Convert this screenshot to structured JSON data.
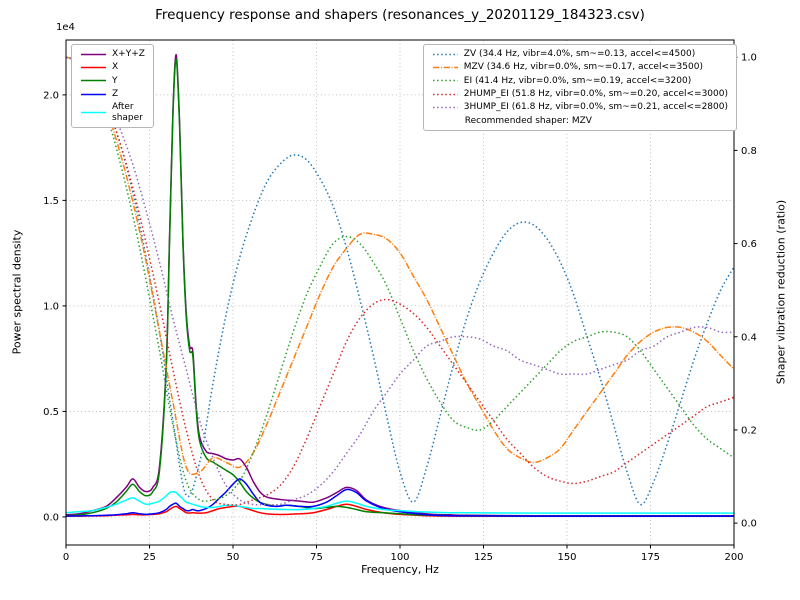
{
  "chart_data": {
    "type": "line",
    "title": "Frequency response and shapers (resonances_y_20201129_184323.csv)",
    "xlabel": "Frequency, Hz",
    "ylabel_left": "Power spectral density",
    "ylabel_right": "Shaper vibration reduction (ratio)",
    "offset_text": "1e4",
    "grid": true,
    "xlim": [
      0,
      200
    ],
    "ylim_left": [
      -0.133,
      2.26
    ],
    "ylim_right": [
      -0.047,
      1.037
    ],
    "xticks": {
      "values": [
        0,
        25,
        50,
        75,
        100,
        125,
        150,
        175,
        200
      ],
      "labels": [
        "0",
        "25",
        "50",
        "75",
        "100",
        "125",
        "150",
        "175",
        "200"
      ]
    },
    "yticks_left": {
      "values": [
        0.0,
        0.5,
        1.0,
        1.5,
        2.0
      ],
      "labels": [
        "0.0",
        "0.5",
        "1.0",
        "1.5",
        "2.0"
      ]
    },
    "yticks_right": {
      "values": [
        0.0,
        0.2,
        0.4,
        0.6,
        0.8,
        1.0
      ],
      "labels": [
        "0.0",
        "0.2",
        "0.4",
        "0.6",
        "0.8",
        "1.0"
      ]
    },
    "recommended": "Recommended shaper: MZV",
    "psd_x": [
      0,
      4,
      8,
      12,
      15,
      18,
      20,
      22,
      24,
      26,
      28,
      30,
      31,
      32,
      33,
      34,
      35,
      36,
      37,
      38,
      39,
      40,
      42,
      44,
      46,
      48,
      50,
      52,
      54,
      56,
      58,
      60,
      63,
      66,
      70,
      74,
      78,
      81,
      84,
      87,
      90,
      95,
      100,
      105,
      110,
      115,
      120,
      140,
      160,
      180,
      200
    ],
    "psd_series": [
      {
        "name": "X+Y+Z",
        "color": "#800080",
        "style": "solid",
        "y": [
          0.01,
          0.015,
          0.03,
          0.05,
          0.09,
          0.14,
          0.18,
          0.14,
          0.12,
          0.14,
          0.24,
          0.72,
          1.32,
          1.92,
          2.19,
          1.87,
          1.32,
          0.97,
          0.81,
          0.78,
          0.52,
          0.38,
          0.31,
          0.3,
          0.29,
          0.275,
          0.27,
          0.275,
          0.235,
          0.17,
          0.12,
          0.095,
          0.085,
          0.08,
          0.075,
          0.07,
          0.09,
          0.115,
          0.14,
          0.125,
          0.08,
          0.045,
          0.03,
          0.02,
          0.012,
          0.01,
          0.008,
          0.006,
          0.006,
          0.006,
          0.006
        ]
      },
      {
        "name": "X",
        "color": "#ff0000",
        "style": "solid",
        "y": [
          0.004,
          0.004,
          0.005,
          0.006,
          0.008,
          0.01,
          0.012,
          0.01,
          0.01,
          0.012,
          0.015,
          0.025,
          0.035,
          0.045,
          0.05,
          0.04,
          0.03,
          0.02,
          0.018,
          0.02,
          0.018,
          0.018,
          0.02,
          0.03,
          0.04,
          0.045,
          0.05,
          0.05,
          0.04,
          0.03,
          0.02,
          0.015,
          0.012,
          0.012,
          0.015,
          0.02,
          0.035,
          0.05,
          0.06,
          0.05,
          0.035,
          0.02,
          0.012,
          0.008,
          0.005,
          0.004,
          0.004,
          0.003,
          0.003,
          0.003,
          0.003
        ]
      },
      {
        "name": "Y",
        "color": "#008000",
        "style": "solid",
        "y": [
          0.005,
          0.01,
          0.02,
          0.04,
          0.07,
          0.12,
          0.155,
          0.12,
          0.1,
          0.12,
          0.22,
          0.7,
          1.3,
          1.9,
          2.17,
          1.85,
          1.3,
          0.95,
          0.79,
          0.76,
          0.5,
          0.36,
          0.28,
          0.26,
          0.24,
          0.22,
          0.2,
          0.165,
          0.12,
          0.09,
          0.07,
          0.06,
          0.05,
          0.055,
          0.05,
          0.04,
          0.045,
          0.05,
          0.045,
          0.035,
          0.025,
          0.02,
          0.015,
          0.01,
          0.008,
          0.006,
          0.005,
          0.004,
          0.004,
          0.004,
          0.004
        ]
      },
      {
        "name": "Z",
        "color": "#0000ff",
        "style": "solid",
        "y": [
          0.004,
          0.005,
          0.006,
          0.008,
          0.01,
          0.015,
          0.02,
          0.015,
          0.012,
          0.015,
          0.02,
          0.035,
          0.05,
          0.06,
          0.065,
          0.05,
          0.04,
          0.03,
          0.03,
          0.035,
          0.03,
          0.03,
          0.04,
          0.06,
          0.09,
          0.12,
          0.155,
          0.18,
          0.155,
          0.11,
          0.07,
          0.055,
          0.05,
          0.055,
          0.05,
          0.05,
          0.07,
          0.1,
          0.13,
          0.115,
          0.075,
          0.04,
          0.025,
          0.015,
          0.008,
          0.006,
          0.005,
          0.004,
          0.004,
          0.004,
          0.004
        ]
      },
      {
        "name": "After\nshaper",
        "color": "#00ffff",
        "style": "solid",
        "y": [
          0.02,
          0.025,
          0.03,
          0.045,
          0.06,
          0.08,
          0.09,
          0.075,
          0.06,
          0.065,
          0.075,
          0.1,
          0.115,
          0.12,
          0.115,
          0.1,
          0.085,
          0.07,
          0.065,
          0.06,
          0.055,
          0.05,
          0.045,
          0.045,
          0.05,
          0.055,
          0.055,
          0.05,
          0.045,
          0.04,
          0.04,
          0.038,
          0.036,
          0.035,
          0.035,
          0.04,
          0.05,
          0.065,
          0.075,
          0.065,
          0.05,
          0.035,
          0.03,
          0.025,
          0.022,
          0.02,
          0.02,
          0.018,
          0.018,
          0.018,
          0.018
        ]
      }
    ],
    "shaper_x": [
      0,
      4,
      8,
      12,
      16,
      20,
      24,
      28,
      32,
      36,
      40,
      44,
      48,
      52,
      56,
      60,
      64,
      68,
      72,
      76,
      80,
      84,
      88,
      92,
      96,
      100,
      104,
      108,
      112,
      116,
      120,
      124,
      128,
      132,
      136,
      140,
      144,
      148,
      152,
      156,
      160,
      164,
      168,
      172,
      176,
      180,
      184,
      188,
      192,
      196,
      200
    ],
    "shaper_series": [
      {
        "name": "ZV (34.4 Hz, vibr=4.0%, sm~=0.13, accel<=4500)",
        "color": "#1f77b4",
        "style": "dotted",
        "values": [
          1.0,
          0.99,
          0.96,
          0.9,
          0.82,
          0.71,
          0.57,
          0.41,
          0.22,
          0.06,
          0.13,
          0.3,
          0.45,
          0.57,
          0.66,
          0.73,
          0.77,
          0.79,
          0.78,
          0.74,
          0.68,
          0.59,
          0.48,
          0.36,
          0.23,
          0.11,
          0.045,
          0.12,
          0.23,
          0.34,
          0.44,
          0.52,
          0.58,
          0.625,
          0.645,
          0.64,
          0.61,
          0.56,
          0.49,
          0.4,
          0.31,
          0.21,
          0.11,
          0.04,
          0.09,
          0.17,
          0.26,
          0.35,
          0.43,
          0.5,
          0.55
        ]
      },
      {
        "name": "MZV (34.6 Hz, vibr=0.0%, sm~=0.17, accel<=3500)",
        "color": "#ff7f0e",
        "style": "dashdot",
        "values": [
          1.0,
          0.99,
          0.95,
          0.89,
          0.8,
          0.69,
          0.56,
          0.41,
          0.26,
          0.12,
          0.11,
          0.14,
          0.13,
          0.12,
          0.15,
          0.21,
          0.28,
          0.35,
          0.42,
          0.49,
          0.55,
          0.59,
          0.62,
          0.62,
          0.61,
          0.58,
          0.53,
          0.48,
          0.42,
          0.36,
          0.3,
          0.25,
          0.2,
          0.16,
          0.14,
          0.13,
          0.14,
          0.16,
          0.2,
          0.24,
          0.28,
          0.32,
          0.36,
          0.39,
          0.41,
          0.42,
          0.42,
          0.41,
          0.39,
          0.36,
          0.33
        ]
      },
      {
        "name": "EI (41.4 Hz, vibr=0.0%, sm~=0.19, accel<=3200)",
        "color": "#2ca02c",
        "style": "dotted",
        "values": [
          1.0,
          0.99,
          0.95,
          0.88,
          0.78,
          0.66,
          0.52,
          0.37,
          0.21,
          0.09,
          0.05,
          0.05,
          0.06,
          0.09,
          0.15,
          0.23,
          0.32,
          0.41,
          0.49,
          0.55,
          0.6,
          0.615,
          0.6,
          0.56,
          0.51,
          0.44,
          0.37,
          0.31,
          0.26,
          0.22,
          0.205,
          0.2,
          0.22,
          0.25,
          0.28,
          0.31,
          0.34,
          0.37,
          0.39,
          0.4,
          0.41,
          0.41,
          0.4,
          0.37,
          0.33,
          0.29,
          0.25,
          0.21,
          0.18,
          0.16,
          0.14
        ]
      },
      {
        "name": "2HUMP_EI (51.8 Hz, vibr=0.0%, sm~=0.20, accel<=3000)",
        "color": "#d62728",
        "style": "dotted",
        "values": [
          1.0,
          0.99,
          0.96,
          0.9,
          0.82,
          0.72,
          0.6,
          0.47,
          0.33,
          0.2,
          0.1,
          0.05,
          0.04,
          0.04,
          0.05,
          0.06,
          0.08,
          0.12,
          0.18,
          0.25,
          0.32,
          0.39,
          0.44,
          0.47,
          0.48,
          0.47,
          0.45,
          0.42,
          0.38,
          0.34,
          0.3,
          0.26,
          0.22,
          0.18,
          0.15,
          0.12,
          0.1,
          0.09,
          0.085,
          0.09,
          0.1,
          0.11,
          0.13,
          0.15,
          0.17,
          0.19,
          0.21,
          0.23,
          0.25,
          0.26,
          0.27
        ]
      },
      {
        "name": "3HUMP_EI (61.8 Hz, vibr=0.0%, sm~=0.21, accel<=2800)",
        "color": "#9467bd",
        "style": "dotted",
        "values": [
          1.0,
          0.99,
          0.97,
          0.92,
          0.85,
          0.77,
          0.67,
          0.56,
          0.44,
          0.33,
          0.22,
          0.14,
          0.08,
          0.05,
          0.04,
          0.04,
          0.04,
          0.05,
          0.06,
          0.08,
          0.11,
          0.15,
          0.19,
          0.24,
          0.28,
          0.32,
          0.35,
          0.38,
          0.39,
          0.4,
          0.4,
          0.395,
          0.38,
          0.37,
          0.35,
          0.34,
          0.33,
          0.32,
          0.32,
          0.32,
          0.33,
          0.34,
          0.35,
          0.37,
          0.38,
          0.4,
          0.41,
          0.42,
          0.42,
          0.41,
          0.41
        ]
      }
    ]
  }
}
